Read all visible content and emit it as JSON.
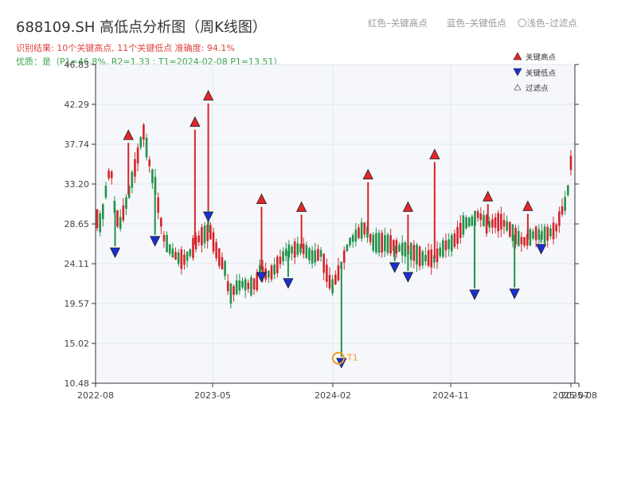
{
  "header": {
    "title": "688109.SH 高低点分析图（周K线图）",
    "result_line": "识别结果: 10个关键高点, 11个关键低点  准确度: 94.1%",
    "quality_line": "优质：是（P1=46.8%, R2=1.33 ; T1=2024-02-08 P1=13.51）",
    "legend_red": "红色–关键高点",
    "legend_blue": "蓝色–关键低点",
    "legend_light": "〇浅色–过滤点"
  },
  "colors": {
    "up": "#d6242a",
    "down": "#22924a",
    "high": "#e4262b",
    "low": "#1c2fd2",
    "t1": "#f29a1e"
  },
  "chart_data": {
    "type": "candlestick",
    "ylim": [
      10.48,
      46.83
    ],
    "y_ticks": [
      "10.48",
      "15.02",
      "19.57",
      "24.11",
      "28.65",
      "33.20",
      "37.74",
      "42.29",
      "46.83"
    ],
    "x_ticks": [
      "2022-08",
      "2023-05",
      "2024-02",
      "2024-11",
      "2025-07",
      "2025-08"
    ],
    "legend": [
      "关键高点",
      "关键低点",
      "过滤点"
    ],
    "t1_label": "T1",
    "t1": {
      "date": "2024-02-08",
      "price": 13.51
    },
    "key_highs": [
      {
        "date": "2022-10",
        "price": 37.9
      },
      {
        "date": "2023-03",
        "price": 39.4
      },
      {
        "date": "2023-04",
        "price": 42.4
      },
      {
        "date": "2023-08",
        "price": 30.6
      },
      {
        "date": "2023-11",
        "price": 29.7
      },
      {
        "date": "2024-04",
        "price": 33.4
      },
      {
        "date": "2024-07",
        "price": 29.7
      },
      {
        "date": "2024-09",
        "price": 35.7
      },
      {
        "date": "2025-01",
        "price": 30.9
      },
      {
        "date": "2025-04",
        "price": 29.8
      }
    ],
    "key_lows": [
      {
        "date": "2022-09",
        "price": 26.1
      },
      {
        "date": "2022-12",
        "price": 27.4
      },
      {
        "date": "2023-04",
        "price": 30.2
      },
      {
        "date": "2023-08",
        "price": 23.3
      },
      {
        "date": "2023-10",
        "price": 22.6
      },
      {
        "date": "2024-02",
        "price": 13.5
      },
      {
        "date": "2024-06",
        "price": 24.4
      },
      {
        "date": "2024-07",
        "price": 23.3
      },
      {
        "date": "2024-12",
        "price": 21.3
      },
      {
        "date": "2025-03",
        "price": 21.4
      },
      {
        "date": "2025-05",
        "price": 26.5
      }
    ]
  }
}
